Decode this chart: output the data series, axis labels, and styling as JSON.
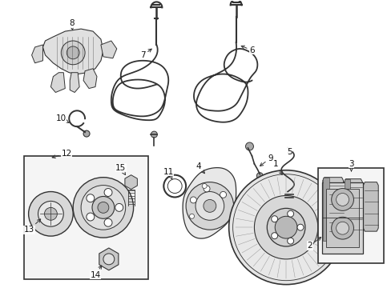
{
  "bg_color": "#ffffff",
  "line_color": "#333333",
  "label_color": "#111111",
  "fig_w": 4.89,
  "fig_h": 3.6,
  "dpi": 100
}
